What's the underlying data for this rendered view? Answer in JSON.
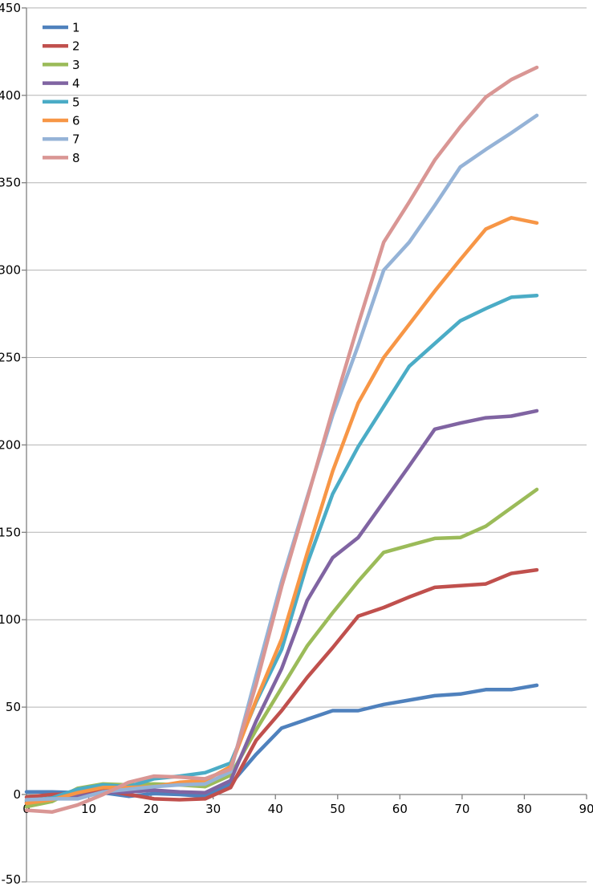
{
  "chart_data": {
    "type": "line",
    "title": "",
    "xlabel": "",
    "ylabel": "",
    "xlim": [
      0,
      90
    ],
    "ylim": [
      -50,
      450
    ],
    "x_ticks": [
      "0",
      "10",
      "20",
      "30",
      "40",
      "50",
      "60",
      "70",
      "80",
      "90"
    ],
    "y_ticks": [
      "-50",
      "0",
      "50",
      "100",
      "150",
      "200",
      "250",
      "300",
      "350",
      "400",
      "450"
    ],
    "grid": "horizontal-only",
    "legend_position": "top-left",
    "background_color": "#ffffff",
    "grid_color": "#b3b3b3",
    "axis_color": "#808080",
    "text_color": "#000000",
    "line_width": 4.5,
    "x": [
      0,
      4.1,
      8.2,
      12.3,
      16.4,
      20.5,
      24.6,
      28.7,
      32.8,
      36.9,
      41,
      45.1,
      49.2,
      53.3,
      57.4,
      61.5,
      65.6,
      69.7,
      73.8,
      77.9,
      82
    ],
    "series": [
      {
        "name": "1",
        "color": "#4F81BD",
        "values": [
          1.5,
          1.5,
          1,
          1,
          -1,
          0.5,
          0,
          -1,
          6,
          23,
          38,
          43,
          48,
          48,
          51.5,
          54,
          56.5,
          57.5,
          60,
          60,
          62.5
        ]
      },
      {
        "name": "2",
        "color": "#C0504D",
        "values": [
          -1.5,
          0,
          0.5,
          2.5,
          0,
          -2.5,
          -3,
          -2.5,
          4,
          31,
          48,
          67,
          84,
          102,
          107,
          113,
          118.5,
          119.5,
          120.5,
          126.5,
          128.5
        ]
      },
      {
        "name": "3",
        "color": "#9BBB59",
        "values": [
          -7,
          -4,
          3.5,
          6,
          5.5,
          6,
          5.5,
          4.5,
          11,
          37,
          61,
          85,
          104,
          122,
          138.5,
          142.5,
          146.5,
          147,
          153.5,
          164,
          174.5
        ]
      },
      {
        "name": "4",
        "color": "#8064A2",
        "values": [
          -4.5,
          -2,
          -1,
          1,
          1.5,
          2.5,
          1.5,
          1,
          8,
          42,
          72,
          111,
          135.5,
          147,
          167.5,
          188,
          209,
          212.5,
          215.5,
          216.5,
          219.5
        ]
      },
      {
        "name": "5",
        "color": "#4BACC6",
        "values": [
          -3.5,
          -2,
          3,
          5.5,
          4.5,
          9,
          10.5,
          12.5,
          18,
          53,
          83,
          132,
          172,
          199,
          222,
          245,
          258,
          271,
          278,
          284.5,
          285.5
        ]
      },
      {
        "name": "6",
        "color": "#F79646",
        "values": [
          -5,
          -3,
          1,
          4,
          4,
          4.5,
          7,
          8,
          16,
          54,
          89,
          138,
          185,
          224,
          250,
          269,
          288,
          306,
          323.5,
          330,
          327
        ]
      },
      {
        "name": "7",
        "color": "#95B3D7",
        "values": [
          -3,
          -2.5,
          -2.5,
          1.5,
          3,
          4.5,
          5.5,
          6,
          13,
          68,
          122,
          170,
          217,
          257,
          300,
          316,
          337,
          359,
          369,
          378.5,
          388.5
        ]
      },
      {
        "name": "8",
        "color": "#D99694",
        "values": [
          -9,
          -10,
          -6,
          0,
          7,
          10.5,
          10,
          9,
          14.5,
          63,
          119,
          169,
          220,
          269,
          316,
          339,
          363,
          382,
          399,
          409,
          416
        ]
      }
    ]
  }
}
